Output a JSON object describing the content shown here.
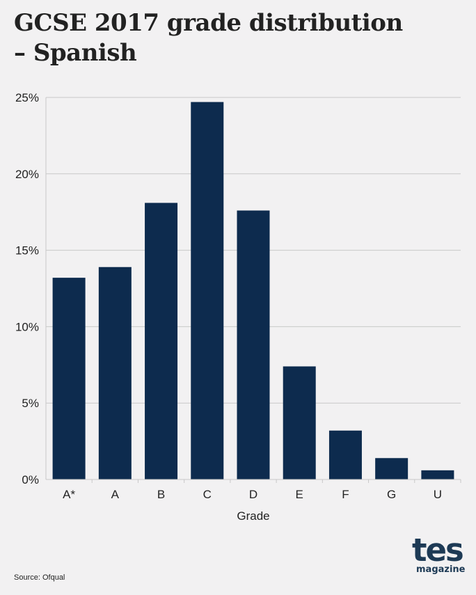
{
  "header": {
    "title_line1": "GCSE 2017 grade distribution",
    "title_line2": "– Spanish"
  },
  "footer": {
    "source": "Source: Ofqual",
    "logo_word": "tes",
    "logo_sub": "magazine"
  },
  "colors": {
    "bar": "#0d2b4e",
    "grid": "#c8c8c8",
    "text": "#222222",
    "background": "#f2f1f2"
  },
  "chart_data": {
    "type": "bar",
    "categories": [
      "A*",
      "A",
      "B",
      "C",
      "D",
      "E",
      "F",
      "G",
      "U"
    ],
    "values": [
      13.2,
      13.9,
      18.1,
      24.7,
      17.6,
      7.4,
      3.2,
      1.4,
      0.6
    ],
    "xlabel": "Grade",
    "ylabel": "",
    "ylim": [
      0,
      25
    ],
    "yticks": [
      0,
      5,
      10,
      15,
      20,
      25
    ],
    "ytick_labels": [
      "0%",
      "5%",
      "10%",
      "15%",
      "20%",
      "25%"
    ],
    "grid": true,
    "legend": "none"
  }
}
